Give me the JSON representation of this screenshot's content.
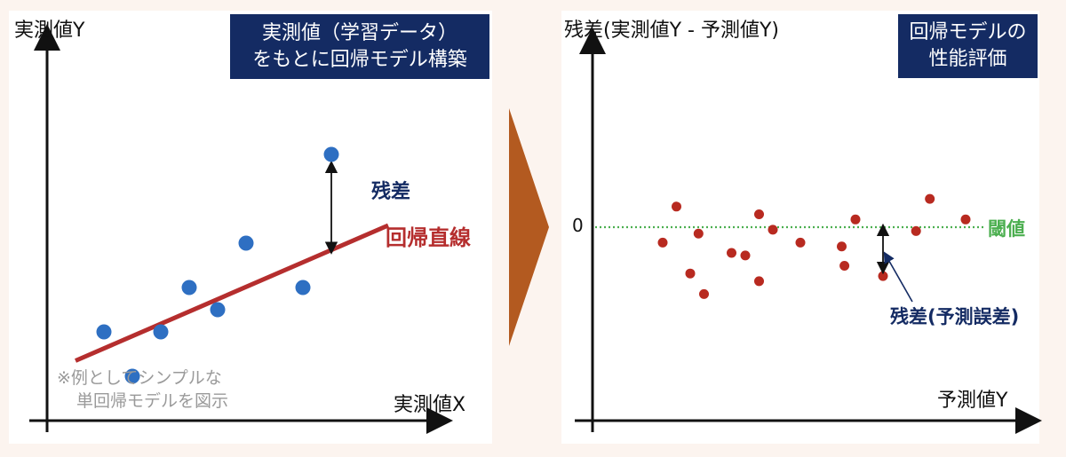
{
  "colors": {
    "background": "#fcf4ef",
    "panel": "#ffffff",
    "navy": "#142b63",
    "regression_line": "#b52e2e",
    "left_points": "#2e6fc2",
    "right_points": "#b82a20",
    "threshold": "#4caf50",
    "arrow": "#b35a20"
  },
  "left": {
    "title_line1": "実測値（学習データ）",
    "title_line2": "をもとに回帰モデル構築",
    "y_label": "実測値Y",
    "x_label": "実測値X",
    "residual_label": "残差",
    "line_label": "回帰直線",
    "note_line1": "※例としてシンプルな",
    "note_line2": "単回帰モデルを図示"
  },
  "right": {
    "title_line1": "回帰モデルの",
    "title_line2": "性能評価",
    "y_label": "残差(実測値Y - 予測値Y)",
    "x_label": "予測値Y",
    "zero_label": "0",
    "threshold_label": "閾値",
    "residual_label": "残差(予測誤差)"
  },
  "chart_data": [
    {
      "type": "scatter",
      "series": [
        {
          "values": [
            [
              2,
              4
            ],
            [
              3,
              2
            ],
            [
              4,
              4
            ],
            [
              5,
              6
            ],
            [
              6,
              5
            ],
            [
              7,
              8
            ],
            [
              9,
              6
            ],
            [
              10,
              12
            ]
          ]
        }
      ],
      "regression_line": [
        [
          1,
          2.7
        ],
        [
          12,
          8.8
        ]
      ],
      "xlabel": "実測値X",
      "ylabel": "実測値Y"
    },
    {
      "type": "scatter",
      "series": [
        {
          "values": [
            [
              1,
              -0.6
            ],
            [
              1.5,
              0.8
            ],
            [
              2,
              -1.8
            ],
            [
              2.3,
              -0.25
            ],
            [
              2.5,
              -2.6
            ],
            [
              3.5,
              -1.0
            ],
            [
              4,
              -1.1
            ],
            [
              4.5,
              0.5
            ],
            [
              4.5,
              -2.1
            ],
            [
              5,
              -0.1
            ],
            [
              6,
              -0.6
            ],
            [
              7.5,
              -0.75
            ],
            [
              7.6,
              -1.5
            ],
            [
              8,
              0.3
            ],
            [
              9,
              -1.9
            ],
            [
              10.2,
              -0.15
            ],
            [
              10.7,
              1.1
            ],
            [
              12,
              0.3
            ]
          ]
        }
      ],
      "threshold": 0,
      "xlabel": "予測値Y",
      "ylabel": "残差(実測値Y - 予測値Y)"
    }
  ]
}
